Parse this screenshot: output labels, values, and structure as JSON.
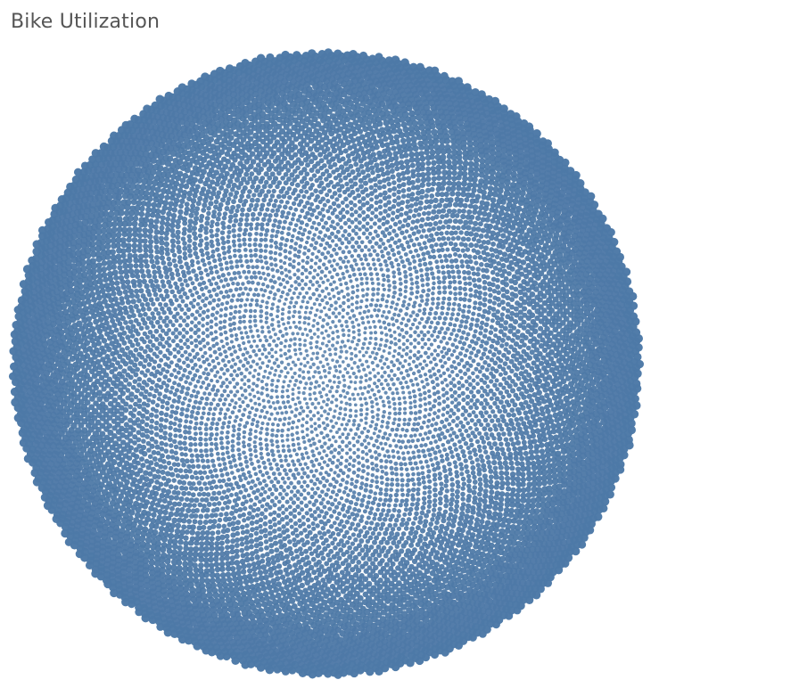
{
  "title": "Bike Utilization",
  "chart_data": {
    "type": "scatter",
    "subtype": "packed-bubble",
    "title": "Bike Utilization",
    "xlabel": "",
    "ylabel": "",
    "legend": "none",
    "grid": false,
    "mark_color": "#4e79a7",
    "mark_count": 11000,
    "mark_size_trend": "marks are largest at the outer edge of the circle and smallest at the center"
  }
}
